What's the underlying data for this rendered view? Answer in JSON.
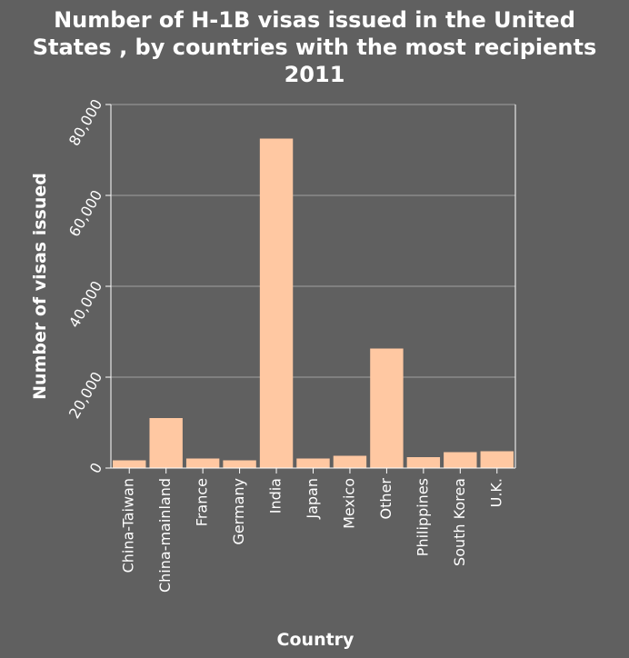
{
  "chart_data": {
    "type": "bar",
    "title_lines": [
      "Number of H-1B visas issued in the United",
      "States , by countries with the most recipients",
      "2011"
    ],
    "xlabel": "Country",
    "ylabel": "Number of visas issued",
    "categories": [
      "China-Taiwan",
      "China-mainland",
      "France",
      "Germany",
      "India",
      "Japan",
      "Mexico",
      "Other",
      "Philippines",
      "South Korea",
      "U.K."
    ],
    "values": [
      1700,
      11000,
      2100,
      1700,
      72500,
      2100,
      2700,
      26300,
      2400,
      3500,
      3700
    ],
    "ylim": [
      0,
      80000
    ],
    "yticks": [
      0,
      20000,
      40000,
      60000,
      80000
    ],
    "ytick_labels": [
      "0",
      "20,000",
      "40,000",
      "60,000",
      "80,000"
    ],
    "grid": true,
    "colors": {
      "background": "#606060",
      "bar": "#ffc8a2",
      "text": "#ffffff",
      "grid": "#a0a0a0"
    }
  }
}
